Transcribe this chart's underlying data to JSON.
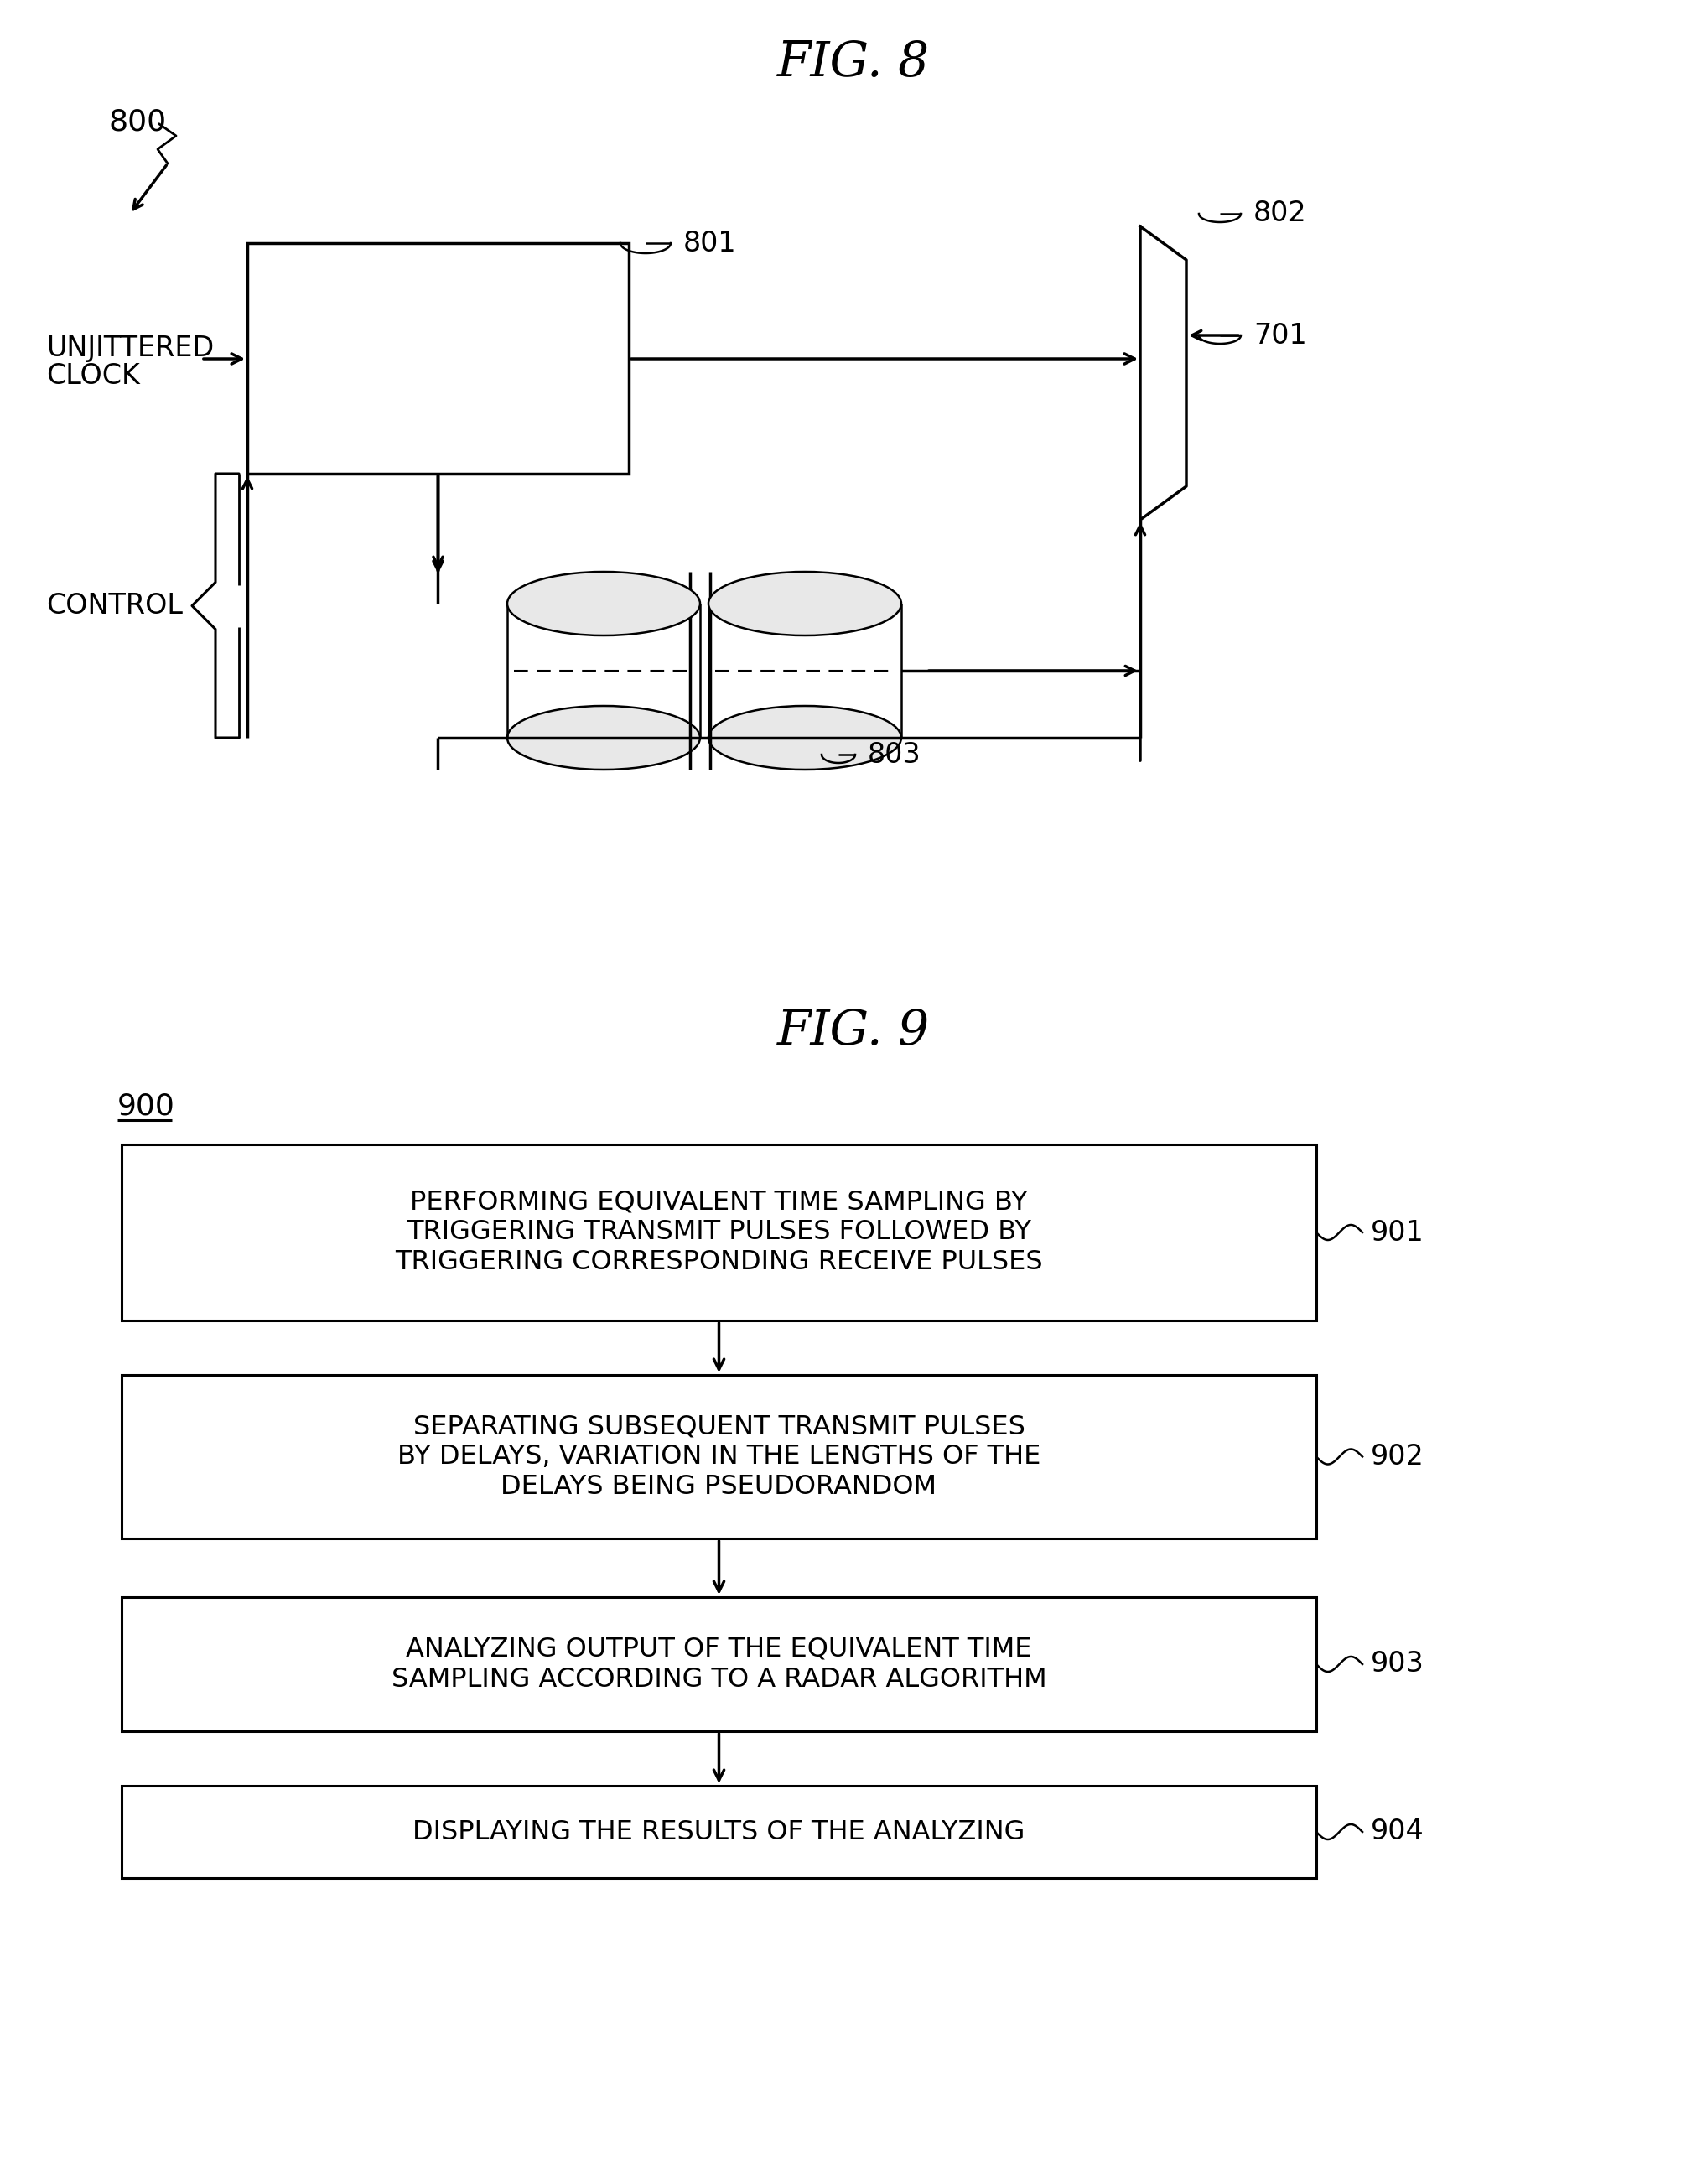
{
  "fig8_title": "FIG. 8",
  "fig9_title": "FIG. 9",
  "bg_color": "#ffffff",
  "line_color": "#000000",
  "fig8": {
    "label_800": "800",
    "label_801": "801",
    "label_802": "802",
    "label_803": "803",
    "label_701": "701",
    "label_unjittered_line1": "UNJITTERED",
    "label_unjittered_line2": "CLOCK",
    "label_control": "CONTROL"
  },
  "fig9": {
    "label_900": "900",
    "boxes": [
      {
        "text_lines": [
          "PERFORMING EQUIVALENT TIME SAMPLING BY",
          "TRIGGERING TRANSMIT PULSES FOLLOWED BY",
          "TRIGGERING CORRESPONDING RECEIVE PULSES"
        ],
        "label": "901"
      },
      {
        "text_lines": [
          "SEPARATING SUBSEQUENT TRANSMIT PULSES",
          "BY DELAYS, VARIATION IN THE LENGTHS OF THE",
          "DELAYS BEING PSEUDORANDOM"
        ],
        "label": "902"
      },
      {
        "text_lines": [
          "ANALYZING OUTPUT OF THE EQUIVALENT TIME",
          "SAMPLING ACCORDING TO A RADAR ALGORITHM"
        ],
        "label": "903"
      },
      {
        "text_lines": [
          "DISPLAYING THE RESULTS OF THE ANALYZING"
        ],
        "label": "904"
      }
    ]
  }
}
